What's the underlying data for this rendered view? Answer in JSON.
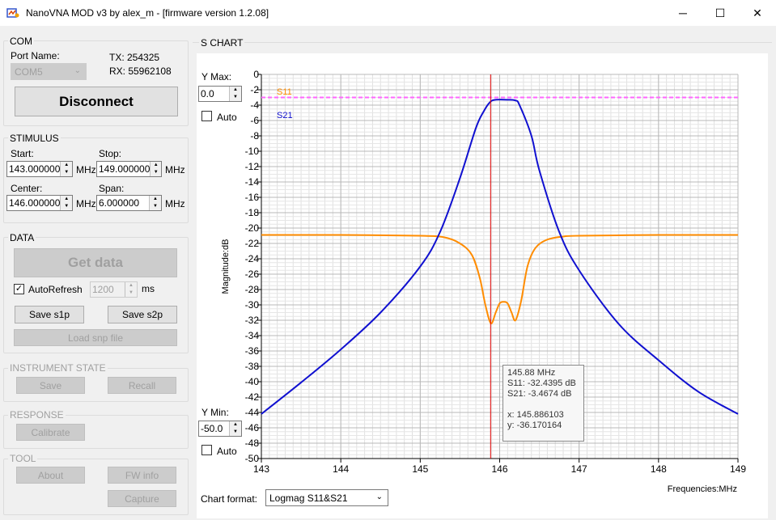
{
  "window": {
    "title": "NanoVNA MOD v3 by alex_m - [firmware version 1.2.08]",
    "minimize": "─",
    "maximize": "☐",
    "close": "✕"
  },
  "com": {
    "title": "COM",
    "port_label": "Port Name:",
    "port_value": "COM5",
    "tx": "TX: 254325",
    "rx": "RX: 55962108",
    "disconnect": "Disconnect"
  },
  "stimulus": {
    "title": "STIMULUS",
    "start_label": "Start:",
    "start_value": "143.000000",
    "stop_label": "Stop:",
    "stop_value": "149.000000",
    "center_label": "Center:",
    "center_value": "146.000000",
    "span_label": "Span:",
    "span_value": "6.000000",
    "unit": "MHz"
  },
  "data": {
    "title": "DATA",
    "get_data": "Get data",
    "autorefresh": "AutoRefresh",
    "interval": "1200",
    "ms": "ms",
    "save_s1p": "Save s1p",
    "save_s2p": "Save s2p",
    "load_snp": "Load snp file"
  },
  "instrument": {
    "title": "INSTRUMENT STATE",
    "save": "Save",
    "recall": "Recall"
  },
  "response": {
    "title": "RESPONSE",
    "calibrate": "Calibrate"
  },
  "tool": {
    "title": "TOOL",
    "about": "About",
    "fw_info": "FW info",
    "capture": "Capture"
  },
  "schart": {
    "title": "S CHART",
    "ymax_label": "Y Max:",
    "ymax_value": "0.0",
    "auto": "Auto",
    "ymin_label": "Y Min:",
    "ymin_value": "-50.0",
    "chart_format_label": "Chart format:",
    "chart_format_value": "Logmag S11&S21"
  },
  "tooltip": {
    "freq": "145.88 MHz",
    "s11": "S11:  -32.4395 dB",
    "s21": "S21:  -3.4674 dB",
    "x": "x: 145.886103",
    "y": "y: -36.170164"
  },
  "colors": {
    "s11": "#ff8c00",
    "s21": "#1010d0",
    "marker": "#e00000",
    "ref_line": "#ff66ff"
  },
  "chart_data": {
    "type": "line",
    "xlabel": "Frequencies:MHz",
    "ylabel": "Magnitude:dB",
    "xlim": [
      143,
      149
    ],
    "ylim": [
      -50,
      0
    ],
    "x_ticks": [
      "143",
      "144",
      "145",
      "146",
      "147",
      "148",
      "149"
    ],
    "y_ticks": [
      "0",
      "-2",
      "-4",
      "-6",
      "-8",
      "-10",
      "-12",
      "-14",
      "-16",
      "-18",
      "-20",
      "-22",
      "-24",
      "-26",
      "-28",
      "-30",
      "-32",
      "-34",
      "-36",
      "-38",
      "-40",
      "-42",
      "-44",
      "-46",
      "-48",
      "-50"
    ],
    "grid": true,
    "marker_x": 145.886,
    "ref_line_y": -3.0,
    "series": [
      {
        "name": "S11",
        "x": [
          143,
          144,
          145,
          145.3,
          145.5,
          145.65,
          145.75,
          145.82,
          145.89,
          145.95,
          146.0,
          146.05,
          146.1,
          146.15,
          146.2,
          146.27,
          146.35,
          146.45,
          146.6,
          146.8,
          147,
          148,
          149
        ],
        "y": [
          -20.9,
          -20.9,
          -21.0,
          -21.2,
          -22.0,
          -23.5,
          -26.5,
          -30.0,
          -32.4,
          -31.0,
          -29.8,
          -29.6,
          -29.8,
          -31.0,
          -32.0,
          -29.5,
          -25.0,
          -22.6,
          -21.5,
          -21.1,
          -21.0,
          -20.9,
          -20.9
        ]
      },
      {
        "name": "S21",
        "x": [
          143,
          143.5,
          144,
          144.5,
          145,
          145.25,
          145.5,
          145.7,
          145.8,
          145.88,
          145.95,
          146.1,
          146.2,
          146.25,
          146.4,
          146.5,
          146.75,
          147,
          147.5,
          148,
          148.5,
          149
        ],
        "y": [
          -44.2,
          -40.1,
          -35.8,
          -31.0,
          -25.0,
          -20.5,
          -13.5,
          -7.0,
          -4.8,
          -3.6,
          -3.3,
          -3.3,
          -3.4,
          -4.0,
          -8.0,
          -12.5,
          -20.5,
          -25.5,
          -32.5,
          -37.2,
          -41.3,
          -44.2
        ]
      }
    ]
  }
}
